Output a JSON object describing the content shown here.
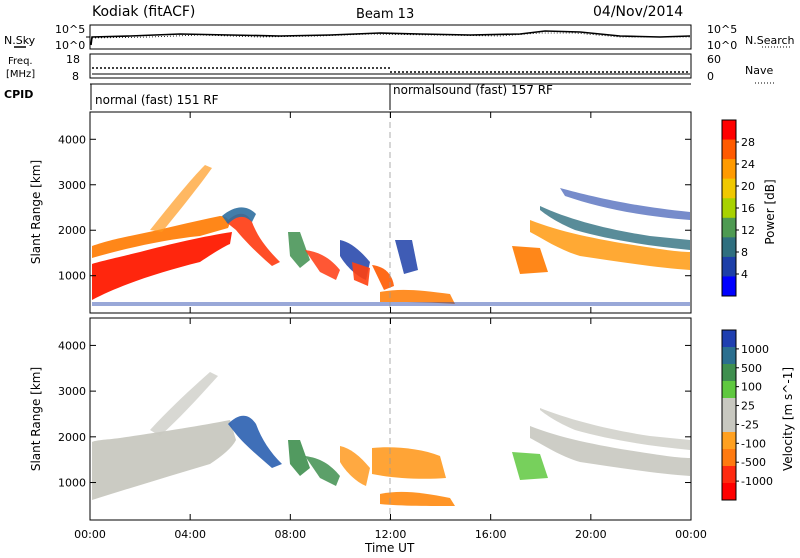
{
  "header": {
    "station": "Kodiak (fitACF)",
    "beam": "Beam 13",
    "date": "04/Nov/2014"
  },
  "top_panels": {
    "nsky_label": "N.Sky",
    "nsearch_label": "N.Search",
    "nsky_ticks": [
      "10^5",
      "10^0"
    ],
    "nsearch_ticks": [
      "10^5",
      "10^0"
    ],
    "freq_label_line1": "Freq.",
    "freq_label_line2": "[MHz]",
    "freq_ticks": [
      "18",
      "8"
    ],
    "nave_label": "Nave",
    "nave_ticks": [
      "60",
      "0"
    ],
    "cpid_label": "CPID",
    "cpid_segments": [
      {
        "label": "normal (fast) 151 RF",
        "start_hour": 0
      },
      {
        "label": "normalsound (fast) 157 RF",
        "start_hour": 12
      }
    ]
  },
  "chart_data": [
    {
      "type": "heatmap",
      "title": "",
      "xlabel": "",
      "ylabel": "Slant Range [km]",
      "colorbar_label": "Power [dB]",
      "colorbar_ticks": [
        "28",
        "24",
        "20",
        "16",
        "12",
        "8",
        "4"
      ],
      "colorbar_colors": [
        "#ff0000",
        "#ff5a00",
        "#ff9a00",
        "#f0c800",
        "#a8d200",
        "#4e9a52",
        "#2f6f7f",
        "#1d3fa8",
        "#0000ff"
      ],
      "yticks": [
        "4000",
        "3000",
        "2000",
        "1000"
      ],
      "ylim": [
        180,
        4600
      ],
      "xlim": [
        0,
        24
      ]
    },
    {
      "type": "heatmap",
      "title": "",
      "xlabel": "Time UT",
      "ylabel": "Slant Range [km]",
      "colorbar_label": "Velocity [m s^-1]",
      "colorbar_ticks": [
        "1000",
        "500",
        "100",
        "25",
        "-25",
        "-100",
        "-500",
        "-1000"
      ],
      "colorbar_colors": [
        "#1f3fb0",
        "#2b6f8f",
        "#3f8f4f",
        "#5fc83f",
        "#c8c8c0",
        "#c8c8c0",
        "#ffa020",
        "#ff7a10",
        "#ff2a10",
        "#ff0000"
      ],
      "yticks": [
        "4000",
        "3000",
        "2000",
        "1000"
      ],
      "xticks": [
        "00:00",
        "04:00",
        "08:00",
        "12:00",
        "16:00",
        "20:00",
        "00:00"
      ],
      "ylim": [
        180,
        4600
      ],
      "xlim": [
        0,
        24
      ]
    }
  ]
}
